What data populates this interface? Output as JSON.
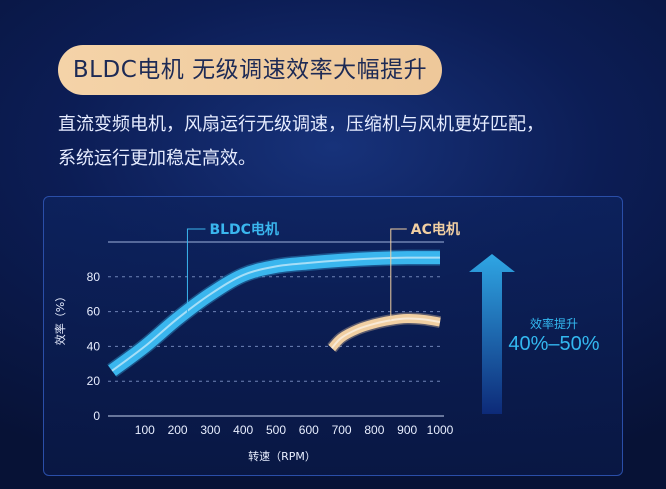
{
  "header": {
    "title": "BLDC电机 无级调速效率大幅提升",
    "desc_line1": "直流变频电机，风扇运行无级调速，压缩机与风机更好匹配，",
    "desc_line2": "系统运行更加稳定高效。"
  },
  "chart_data": {
    "type": "line",
    "xlabel": "转速（RPM）",
    "ylabel": "效率（%）",
    "x_ticks": [
      100,
      200,
      300,
      400,
      500,
      600,
      700,
      800,
      900,
      1000
    ],
    "y_ticks": [
      0,
      20,
      40,
      60,
      80
    ],
    "xlim": [
      0,
      1000
    ],
    "ylim": [
      0,
      100
    ],
    "grid": "horizontal dashed",
    "series": [
      {
        "name": "BLDC电机",
        "color": "#3ab6ee",
        "points": [
          [
            0,
            26
          ],
          [
            100,
            40
          ],
          [
            200,
            56
          ],
          [
            300,
            70
          ],
          [
            400,
            81
          ],
          [
            500,
            86
          ],
          [
            600,
            88
          ],
          [
            700,
            89.5
          ],
          [
            800,
            90.5
          ],
          [
            900,
            91
          ],
          [
            1000,
            91
          ]
        ]
      },
      {
        "name": "AC电机",
        "color": "#f1cfa2",
        "points": [
          [
            670,
            39
          ],
          [
            700,
            45
          ],
          [
            750,
            50
          ],
          [
            800,
            53
          ],
          [
            850,
            55
          ],
          [
            900,
            56
          ],
          [
            950,
            55.5
          ],
          [
            1000,
            54
          ]
        ]
      }
    ],
    "annotation": {
      "label": "效率提升",
      "value": "40%–50%",
      "color": "#33b8f0"
    }
  }
}
